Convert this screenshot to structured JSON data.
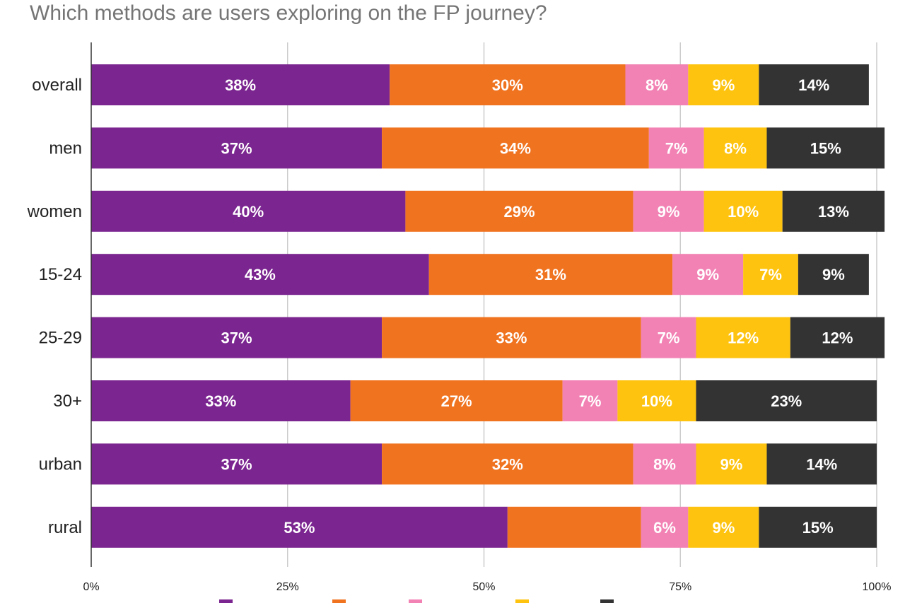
{
  "chart_data": {
    "type": "bar",
    "orientation": "horizontal",
    "stacked": true,
    "title": "Which methods are users exploring on the FP journey?",
    "xlabel": "",
    "ylabel": "",
    "xlim": [
      0,
      100
    ],
    "x_ticks": [
      "0%",
      "25%",
      "50%",
      "75%",
      "100%"
    ],
    "grid": true,
    "legend_position": "bottom",
    "categories": [
      "overall",
      "men",
      "women",
      "15-24",
      "25-29",
      "30+",
      "urban",
      "rural"
    ],
    "series": [
      {
        "color": "#7b2590",
        "values": [
          38,
          37,
          40,
          43,
          37,
          33,
          37,
          53
        ],
        "labels": [
          "38%",
          "37%",
          "40%",
          "43%",
          "37%",
          "33%",
          "37%",
          "53%"
        ]
      },
      {
        "color": "#f07320",
        "values": [
          30,
          34,
          29,
          31,
          33,
          27,
          32,
          17
        ],
        "labels": [
          "30%",
          "34%",
          "29%",
          "31%",
          "33%",
          "27%",
          "32%",
          ""
        ]
      },
      {
        "color": "#f282b4",
        "values": [
          8,
          7,
          9,
          9,
          7,
          7,
          8,
          6
        ],
        "labels": [
          "8%",
          "7%",
          "9%",
          "9%",
          "7%",
          "7%",
          "8%",
          "6%"
        ]
      },
      {
        "color": "#fdc30e",
        "values": [
          9,
          8,
          10,
          7,
          12,
          10,
          9,
          9
        ],
        "labels": [
          "9%",
          "8%",
          "10%",
          "7%",
          "12%",
          "10%",
          "9%",
          "9%"
        ]
      },
      {
        "color": "#333333",
        "values": [
          14,
          15,
          13,
          9,
          12,
          23,
          14,
          15
        ],
        "labels": [
          "14%",
          "15%",
          "13%",
          "9%",
          "12%",
          "23%",
          "14%",
          "15%"
        ]
      }
    ]
  }
}
